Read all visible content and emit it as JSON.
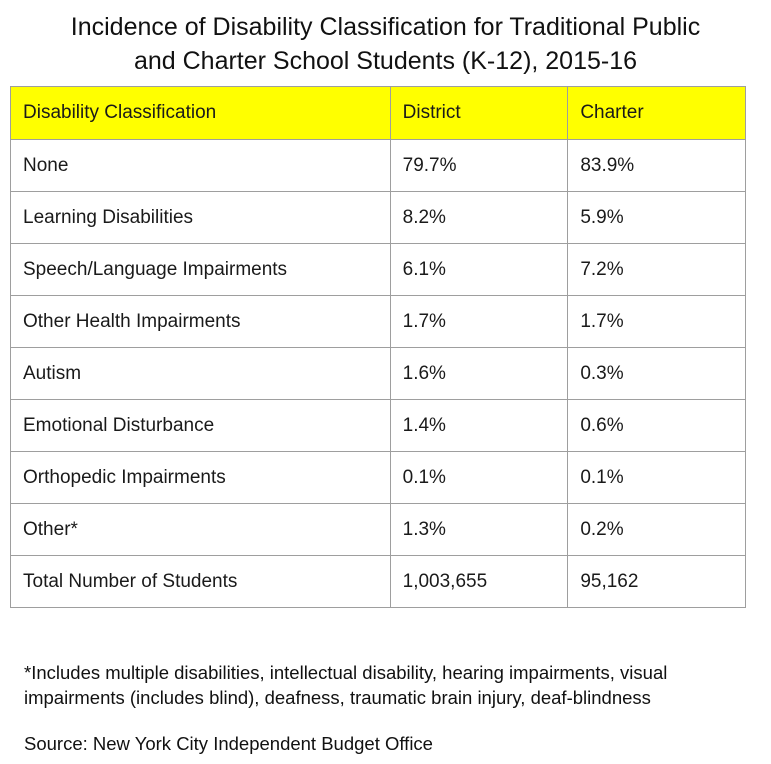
{
  "chart_data": {
    "type": "table",
    "title": "Incidence of Disability Classification for Traditional Public and Charter School Students (K-12), 2015-16",
    "title_lines": [
      "Incidence of Disability Classification for Traditional Public",
      "and Charter School Students (K-12), 2015-16"
    ],
    "columns": [
      "Disability Classification",
      "District",
      "Charter"
    ],
    "rows": [
      {
        "label": "None",
        "district": "79.7%",
        "charter": "83.9%"
      },
      {
        "label": "Learning Disabilities",
        "district": "8.2%",
        "charter": "5.9%"
      },
      {
        "label": "Speech/Language Impairments",
        "district": "6.1%",
        "charter": "7.2%"
      },
      {
        "label": "Other Health Impairments",
        "district": "1.7%",
        "charter": "1.7%"
      },
      {
        "label": "Autism",
        "district": "1.6%",
        "charter": "0.3%"
      },
      {
        "label": "Emotional Disturbance",
        "district": "1.4%",
        "charter": "0.6%"
      },
      {
        "label": "Orthopedic Impairments",
        "district": "0.1%",
        "charter": "0.1%"
      },
      {
        "label": "Other*",
        "district": "1.3%",
        "charter": "0.2%"
      },
      {
        "label": "Total Number of Students",
        "district": "1,003,655",
        "charter": "95,162"
      }
    ],
    "header_color": "#ffff00",
    "grid": true
  },
  "footnote": {
    "lines": [
      "*Includes multiple disabilities, intellectual disability, hearing impairments, visual",
      "impairments (includes blind), deafness, traumatic brain injury, deaf-blindness"
    ]
  },
  "source": "Source: New York City Independent Budget Office"
}
